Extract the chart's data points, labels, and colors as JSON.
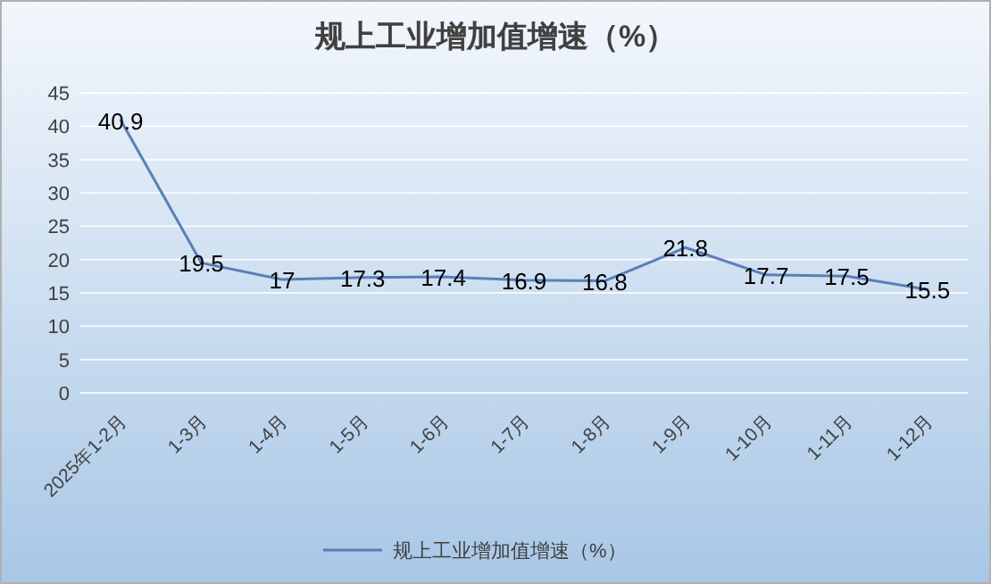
{
  "chart_data": {
    "type": "line",
    "title": "规上工业增加值增速（%）",
    "categories": [
      "2025年1-2月",
      "1-3月",
      "1-4月",
      "1-5月",
      "1-6月",
      "1-7月",
      "1-8月",
      "1-9月",
      "1-10月",
      "1-11月",
      "1-12月"
    ],
    "series": [
      {
        "name": "规上工业增加值增速（%）",
        "color": "#5a7fb8",
        "values": [
          40.9,
          19.5,
          17,
          17.3,
          17.4,
          16.9,
          16.8,
          21.8,
          17.7,
          17.5,
          15.5
        ]
      }
    ],
    "ylim": [
      0,
      45
    ],
    "yticks": [
      0,
      5,
      10,
      15,
      20,
      25,
      30,
      35,
      40,
      45
    ],
    "grid": "y",
    "legend": "bottom",
    "marker": "none",
    "line_style": "solid",
    "data_labels": true
  }
}
